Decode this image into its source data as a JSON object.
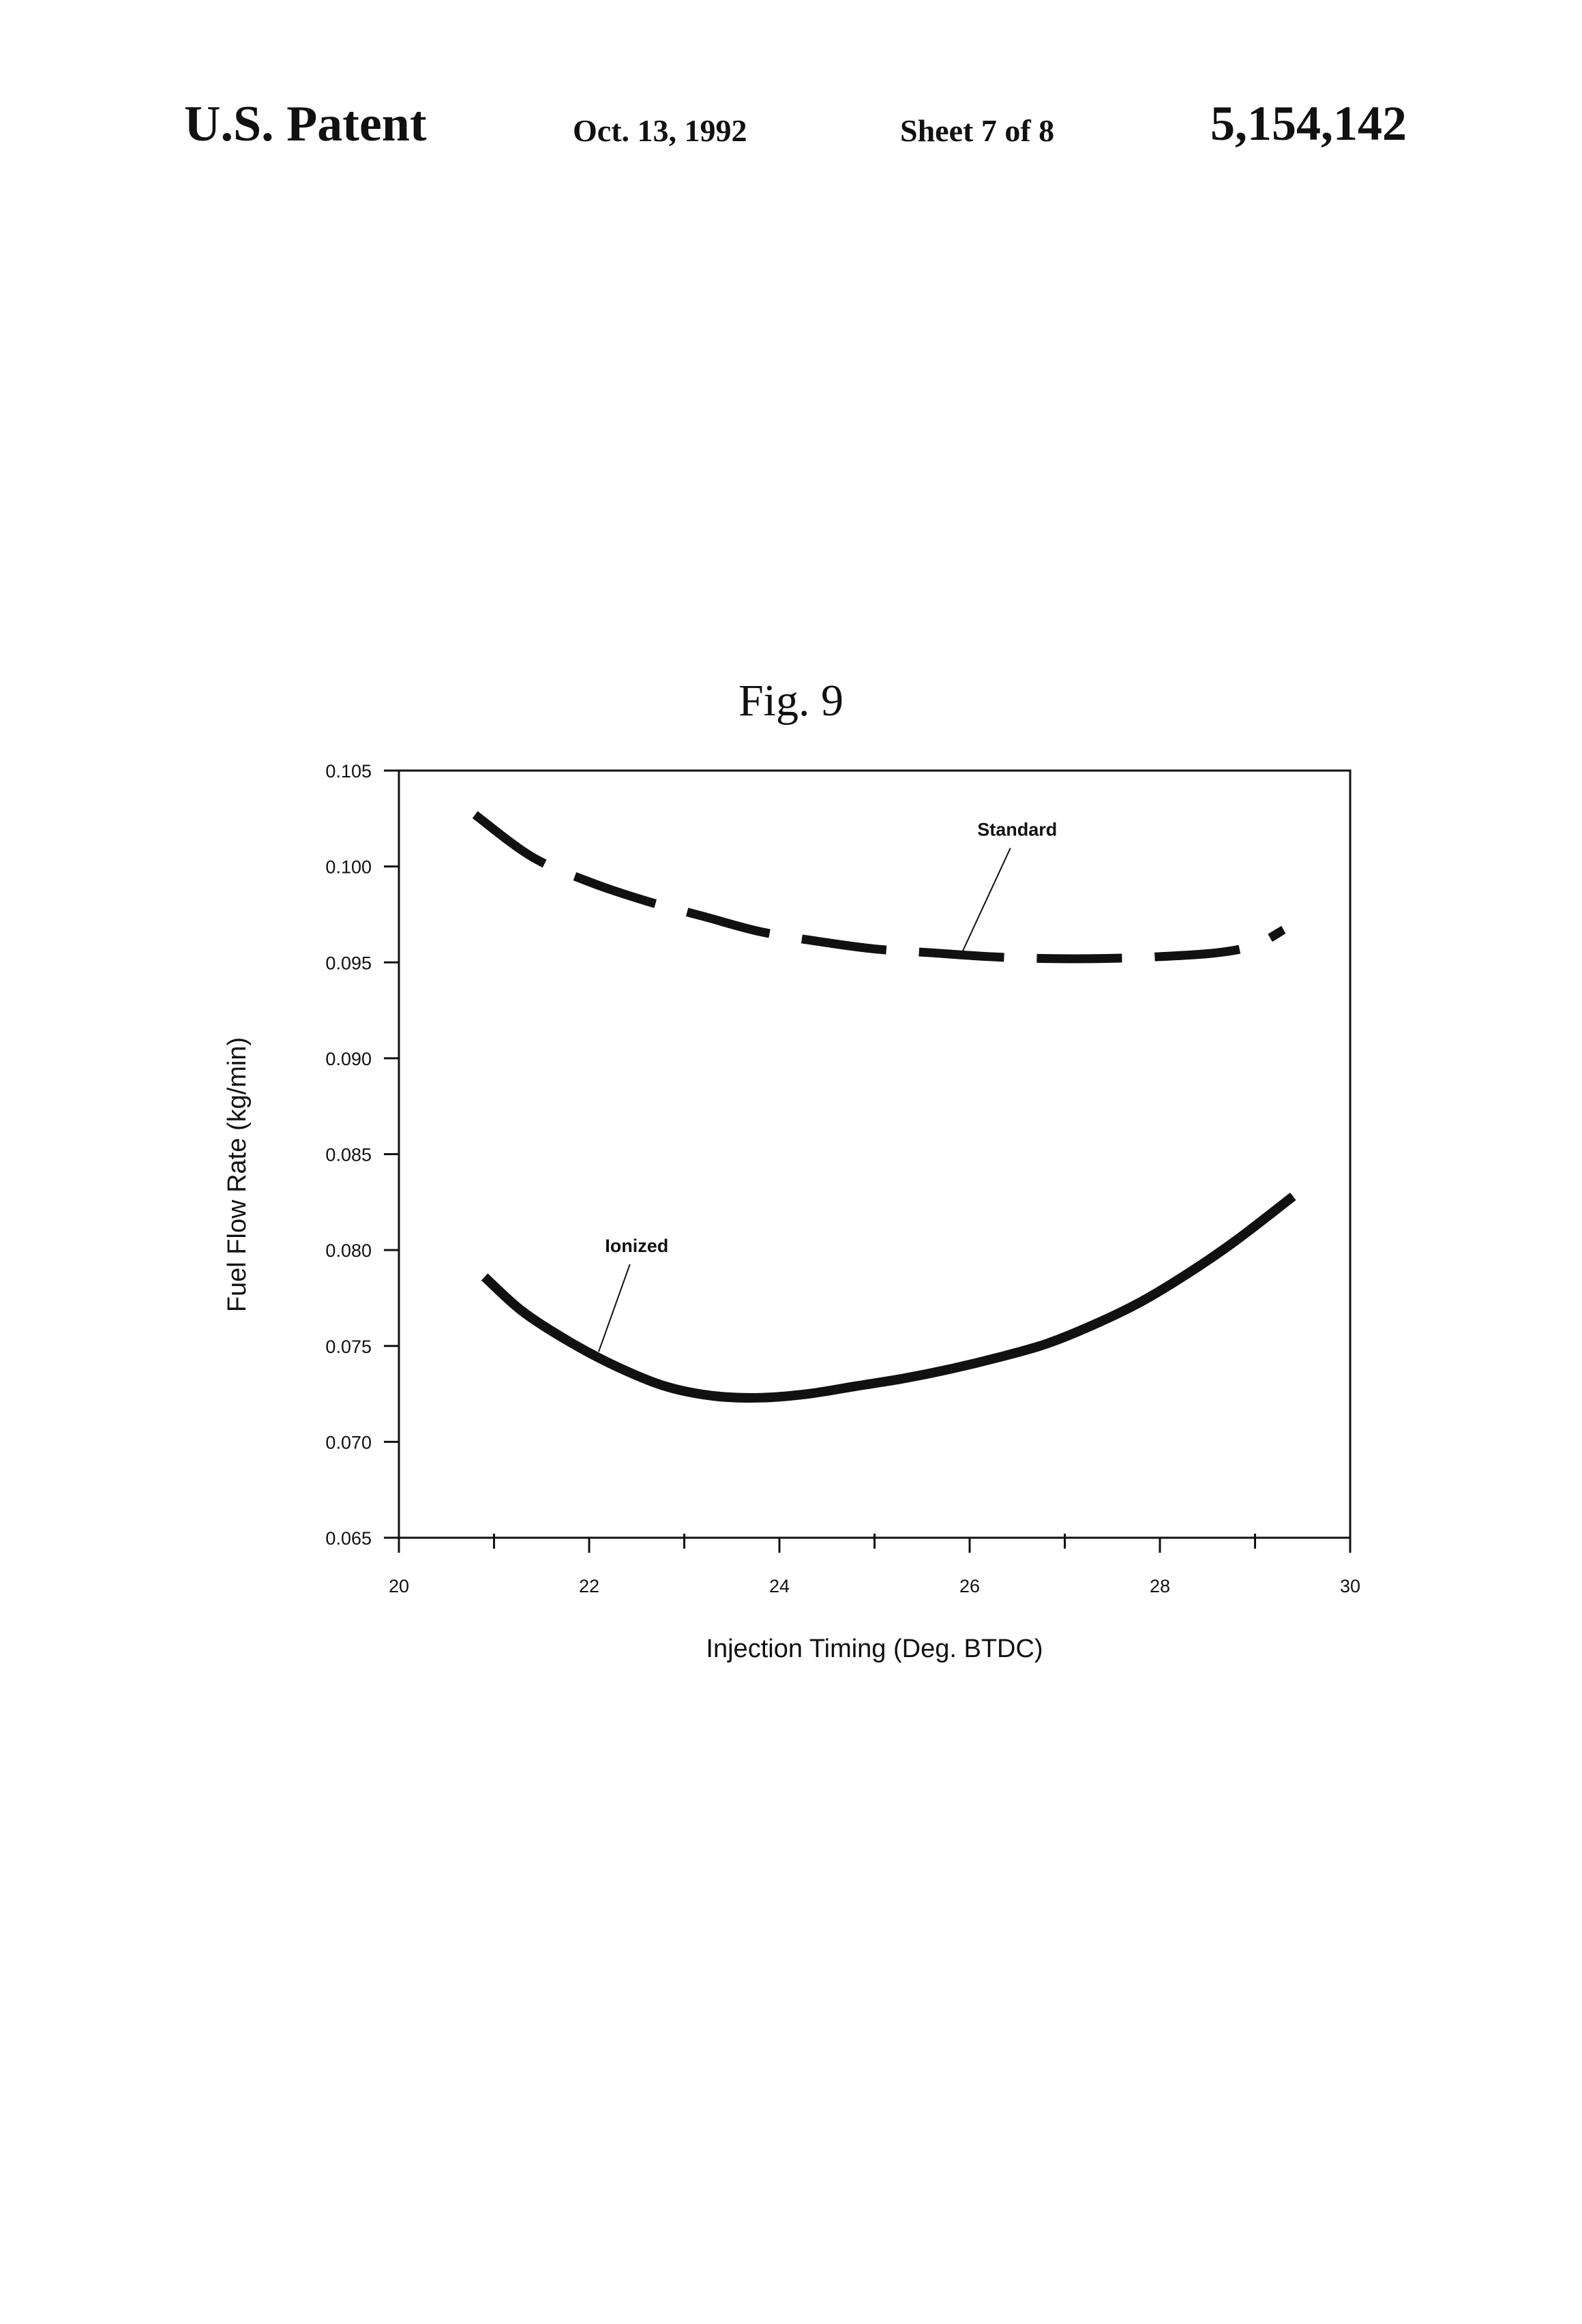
{
  "header": {
    "left": "U.S. Patent",
    "date": "Oct. 13, 1992",
    "sheet": "Sheet 7 of 8",
    "patent_number": "5,154,142"
  },
  "figure": {
    "title": "Fig. 9"
  },
  "chart_data": {
    "type": "line",
    "title": "Fig. 9",
    "xlabel": "Injection Timing (Deg. BTDC)",
    "ylabel": "Fuel Flow Rate (kg/min)",
    "xlim": [
      20,
      30
    ],
    "ylim": [
      0.065,
      0.105
    ],
    "x_ticks": [
      20,
      22,
      24,
      26,
      28,
      30
    ],
    "x_tick_labels": [
      "20",
      "22",
      "24",
      "26",
      "28",
      "30"
    ],
    "x_minor_ticks": [
      21,
      23,
      25,
      27,
      29
    ],
    "y_ticks": [
      0.065,
      0.07,
      0.075,
      0.08,
      0.085,
      0.09,
      0.095,
      0.1,
      0.105
    ],
    "y_tick_labels": [
      "0.065",
      "0.070",
      "0.075",
      "0.080",
      "0.085",
      "0.090",
      "0.095",
      "0.100",
      "0.105"
    ],
    "grid": false,
    "legend": "none",
    "series": [
      {
        "name": "Standard",
        "style": "dashed",
        "color": "#111111",
        "x": [
          20.8,
          21.4,
          22.0,
          22.6,
          23.2,
          23.8,
          24.4,
          25.0,
          25.6,
          26.2,
          26.8,
          27.4,
          28.0,
          28.6,
          29.0,
          29.3
        ],
        "y": [
          0.1027,
          0.1005,
          0.0992,
          0.0982,
          0.0974,
          0.0966,
          0.0961,
          0.0957,
          0.0955,
          0.0953,
          0.0952,
          0.0952,
          0.0953,
          0.0955,
          0.0959,
          0.0967
        ],
        "label_x": 26.5,
        "label_y": 0.1016,
        "label_target": [
          25.9,
          0.0953
        ]
      },
      {
        "name": "Ionized",
        "style": "solid",
        "color": "#111111",
        "x": [
          20.9,
          21.3,
          21.8,
          22.3,
          22.8,
          23.3,
          23.8,
          24.3,
          24.8,
          25.3,
          25.8,
          26.3,
          26.8,
          27.3,
          27.8,
          28.3,
          28.8,
          29.4
        ],
        "y": [
          0.0786,
          0.0768,
          0.0752,
          0.0739,
          0.0729,
          0.0724,
          0.0723,
          0.0725,
          0.0729,
          0.0733,
          0.0738,
          0.0744,
          0.0751,
          0.0761,
          0.0773,
          0.0788,
          0.0805,
          0.0828
        ],
        "label_x": 22.5,
        "label_y": 0.0799,
        "label_target": [
          22.1,
          0.0747
        ]
      }
    ]
  }
}
